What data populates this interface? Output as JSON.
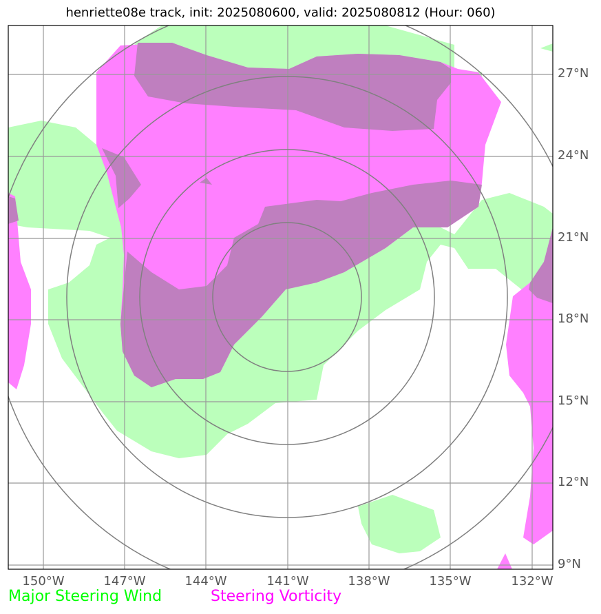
{
  "title": "henriette08e track, init: 2025080600, valid: 2025080812 (Hour: 060)",
  "lat_labels": [
    "27°N",
    "24°N",
    "21°N",
    "18°N",
    "15°N",
    "12°N",
    "9°N"
  ],
  "lon_labels": [
    "150°W",
    "147°W",
    "144°W",
    "141°W",
    "138°W",
    "135°W",
    "132°W"
  ],
  "legend": {
    "wind": "Major Steering Wind",
    "vorticity": "Steering Vorticity"
  },
  "colors": {
    "wind": "#00ff00",
    "wind_fill": "#bbffbb",
    "vorticity": "#ff00ff",
    "overlap": "#bf7fbf",
    "grid": "#999999",
    "rings": "#808080"
  },
  "map": {
    "lat_range": [
      8.8,
      28.8
    ],
    "lon_range": [
      -151.3,
      -131.3
    ],
    "center": {
      "lat": 18.9,
      "lon": -141.0
    }
  }
}
